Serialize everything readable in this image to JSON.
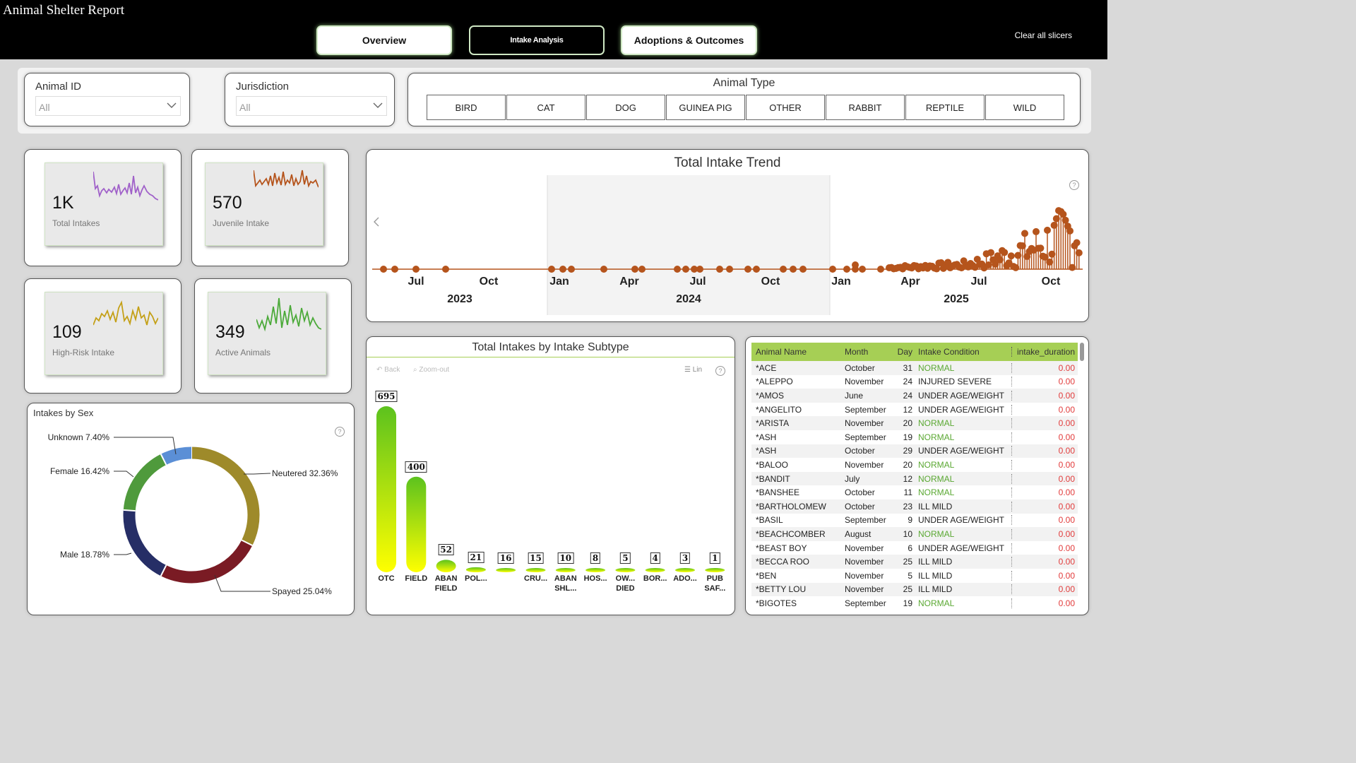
{
  "app": {
    "title": "Animal Shelter Report"
  },
  "tabs": [
    {
      "label": "Overview"
    },
    {
      "label": "Intake Analysis"
    },
    {
      "label": "Adoptions & Outcomes"
    }
  ],
  "header": {
    "clear_slicers": "Clear all slicers"
  },
  "slicers": {
    "animal_id": {
      "label": "Animal ID",
      "value": "All"
    },
    "jurisdiction": {
      "label": "Jurisdiction",
      "value": "All"
    },
    "animal_type": {
      "label": "Animal Type",
      "options": [
        "BIRD",
        "CAT",
        "DOG",
        "GUINEA PIG",
        "OTHER",
        "RABBIT",
        "REPTILE",
        "WILD"
      ]
    }
  },
  "kpis": [
    {
      "value": "1K",
      "label": "Total Intakes",
      "color": "#a061c9"
    },
    {
      "value": "570",
      "label": "Juvenile Intake",
      "color": "#b5541c"
    },
    {
      "value": "109",
      "label": "High-Risk Intake",
      "color": "#c4a017"
    },
    {
      "value": "349",
      "label": "Active Animals",
      "color": "#4caa3a"
    }
  ],
  "trend": {
    "title": "Total Intake Trend",
    "color": "#b5541c",
    "month_ticks": [
      "Jul",
      "Oct",
      "Jan",
      "Apr",
      "Jul",
      "Oct",
      "Jan",
      "Apr",
      "Jul",
      "Oct"
    ],
    "year_ticks": [
      "2023",
      "2024",
      "2025"
    ]
  },
  "subtype_chart": {
    "title": "Total Intakes by Intake Subtype",
    "toolbar": {
      "back": "Back",
      "zoom": "Zoom-out",
      "scale": "Lin"
    }
  },
  "chart_data": [
    {
      "type": "bar",
      "title": "Total Intakes by Intake Subtype",
      "categories": [
        "OTC",
        "FIELD",
        "ABAN FIELD",
        "POL...",
        "",
        "CRU...",
        "ABAN SHL...",
        "HOS...",
        "OW... DIED",
        "BOR...",
        "ADO...",
        "PUB SAF..."
      ],
      "values": [
        695,
        400,
        52,
        21,
        16,
        15,
        10,
        8,
        5,
        4,
        3,
        1
      ]
    },
    {
      "type": "pie",
      "title": "Intakes by Sex",
      "categories": [
        "Neutered",
        "Spayed",
        "Male",
        "Female",
        "Unknown"
      ],
      "values": [
        32.36,
        25.04,
        18.78,
        16.42,
        7.4
      ],
      "labels": [
        "Neutered 32.36%",
        "Spayed 25.04%",
        "Male 18.78%",
        "Female 16.42%",
        "Unknown 7.40%"
      ],
      "colors": [
        "#9e8a2a",
        "#7a1b24",
        "#262e66",
        "#4f9a3c",
        "#5b8fd6"
      ]
    }
  ],
  "table": {
    "headers": [
      "Animal Name",
      "Month",
      "Day",
      "Intake Condition",
      "intake_duration"
    ],
    "rows": [
      [
        "*ACE",
        "October",
        "31",
        "NORMAL",
        "0.00"
      ],
      [
        "*ALEPPO",
        "November",
        "24",
        "INJURED SEVERE",
        "0.00"
      ],
      [
        "*AMOS",
        "June",
        "24",
        "UNDER AGE/WEIGHT",
        "0.00"
      ],
      [
        "*ANGELITO",
        "September",
        "12",
        "UNDER AGE/WEIGHT",
        "0.00"
      ],
      [
        "*ARISTA",
        "November",
        "20",
        "NORMAL",
        "0.00"
      ],
      [
        "*ASH",
        "September",
        "19",
        "NORMAL",
        "0.00"
      ],
      [
        "*ASH",
        "October",
        "29",
        "UNDER AGE/WEIGHT",
        "0.00"
      ],
      [
        "*BALOO",
        "November",
        "20",
        "NORMAL",
        "0.00"
      ],
      [
        "*BANDIT",
        "July",
        "12",
        "NORMAL",
        "0.00"
      ],
      [
        "*BANSHEE",
        "October",
        "11",
        "NORMAL",
        "0.00"
      ],
      [
        "*BARTHOLOMEW",
        "October",
        "23",
        "ILL MILD",
        "0.00"
      ],
      [
        "*BASIL",
        "September",
        "9",
        "UNDER AGE/WEIGHT",
        "0.00"
      ],
      [
        "*BEACHCOMBER",
        "August",
        "10",
        "NORMAL",
        "0.00"
      ],
      [
        "*BEAST BOY",
        "November",
        "6",
        "UNDER AGE/WEIGHT",
        "0.00"
      ],
      [
        "*BECCA ROO",
        "November",
        "25",
        "ILL MILD",
        "0.00"
      ],
      [
        "*BEN",
        "November",
        "5",
        "ILL MILD",
        "0.00"
      ],
      [
        "*BETTY LOU",
        "November",
        "25",
        "ILL MILD",
        "0.00"
      ],
      [
        "*BIGOTES",
        "September",
        "19",
        "NORMAL",
        "0.00"
      ]
    ]
  }
}
